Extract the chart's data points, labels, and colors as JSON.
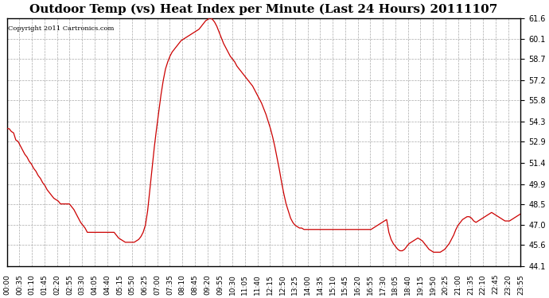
{
  "title": "Outdoor Temp (vs) Heat Index per Minute (Last 24 Hours) 20111107",
  "copyright_text": "Copyright 2011 Cartronics.com",
  "line_color": "#cc0000",
  "background_color": "#ffffff",
  "plot_bg_color": "#ffffff",
  "grid_color": "#aaaaaa",
  "yticks": [
    44.1,
    45.6,
    47.0,
    48.5,
    49.9,
    51.4,
    52.9,
    54.3,
    55.8,
    57.2,
    58.7,
    60.1,
    61.6
  ],
  "ymin": 44.1,
  "ymax": 61.6,
  "xtick_labels": [
    "00:00",
    "00:35",
    "01:10",
    "01:45",
    "02:20",
    "02:55",
    "03:30",
    "04:05",
    "04:40",
    "05:15",
    "05:50",
    "06:25",
    "07:00",
    "07:35",
    "08:10",
    "08:45",
    "09:20",
    "09:55",
    "10:30",
    "11:05",
    "11:40",
    "12:15",
    "12:50",
    "13:25",
    "14:00",
    "14:35",
    "15:10",
    "15:45",
    "16:20",
    "16:55",
    "17:30",
    "18:05",
    "18:40",
    "19:15",
    "19:50",
    "20:25",
    "21:00",
    "21:35",
    "22:10",
    "22:45",
    "23:20",
    "23:55"
  ],
  "data_y": [
    53.8,
    53.8,
    53.6,
    53.5,
    53.0,
    52.9,
    52.6,
    52.3,
    52.0,
    51.8,
    51.5,
    51.3,
    51.0,
    50.8,
    50.5,
    50.3,
    50.0,
    49.8,
    49.5,
    49.3,
    49.1,
    48.9,
    48.8,
    48.7,
    48.5,
    48.5,
    48.5,
    48.5,
    48.5,
    48.3,
    48.1,
    47.8,
    47.5,
    47.2,
    47.0,
    46.8,
    46.5,
    46.5,
    46.5,
    46.5,
    46.5,
    46.5,
    46.5,
    46.5,
    46.5,
    46.5,
    46.5,
    46.5,
    46.5,
    46.3,
    46.1,
    46.0,
    45.9,
    45.8,
    45.8,
    45.8,
    45.8,
    45.8,
    45.9,
    46.0,
    46.2,
    46.5,
    47.0,
    48.0,
    49.5,
    51.0,
    52.5,
    53.8,
    55.0,
    56.2,
    57.2,
    58.0,
    58.5,
    58.9,
    59.2,
    59.4,
    59.6,
    59.8,
    60.0,
    60.1,
    60.2,
    60.3,
    60.4,
    60.5,
    60.6,
    60.7,
    60.8,
    61.0,
    61.2,
    61.4,
    61.5,
    61.6,
    61.5,
    61.3,
    61.0,
    60.6,
    60.2,
    59.8,
    59.5,
    59.2,
    58.9,
    58.7,
    58.5,
    58.2,
    58.0,
    57.8,
    57.6,
    57.4,
    57.2,
    57.0,
    56.8,
    56.5,
    56.2,
    55.9,
    55.6,
    55.2,
    54.8,
    54.3,
    53.8,
    53.2,
    52.5,
    51.7,
    50.9,
    50.0,
    49.2,
    48.5,
    48.0,
    47.5,
    47.2,
    47.0,
    46.9,
    46.8,
    46.8,
    46.7,
    46.7,
    46.7,
    46.7,
    46.7,
    46.7,
    46.7,
    46.7,
    46.7,
    46.7,
    46.7,
    46.7,
    46.7,
    46.7,
    46.7,
    46.7,
    46.7,
    46.7,
    46.7,
    46.7,
    46.7,
    46.7,
    46.7,
    46.7,
    46.7,
    46.7,
    46.7,
    46.7,
    46.7,
    46.7,
    46.7,
    46.8,
    46.9,
    47.0,
    47.1,
    47.2,
    47.3,
    47.4,
    46.5,
    46.0,
    45.7,
    45.5,
    45.3,
    45.2,
    45.2,
    45.3,
    45.5,
    45.7,
    45.8,
    45.9,
    46.0,
    46.1,
    46.0,
    45.9,
    45.7,
    45.5,
    45.3,
    45.2,
    45.1,
    45.1,
    45.1,
    45.1,
    45.2,
    45.3,
    45.5,
    45.7,
    46.0,
    46.3,
    46.7,
    47.0,
    47.2,
    47.4,
    47.5,
    47.6,
    47.6,
    47.5,
    47.3,
    47.2,
    47.3,
    47.4,
    47.5,
    47.6,
    47.7,
    47.8,
    47.9,
    47.8,
    47.7,
    47.6,
    47.5,
    47.4,
    47.3,
    47.3,
    47.3,
    47.4,
    47.5,
    47.6,
    47.7,
    47.8
  ]
}
